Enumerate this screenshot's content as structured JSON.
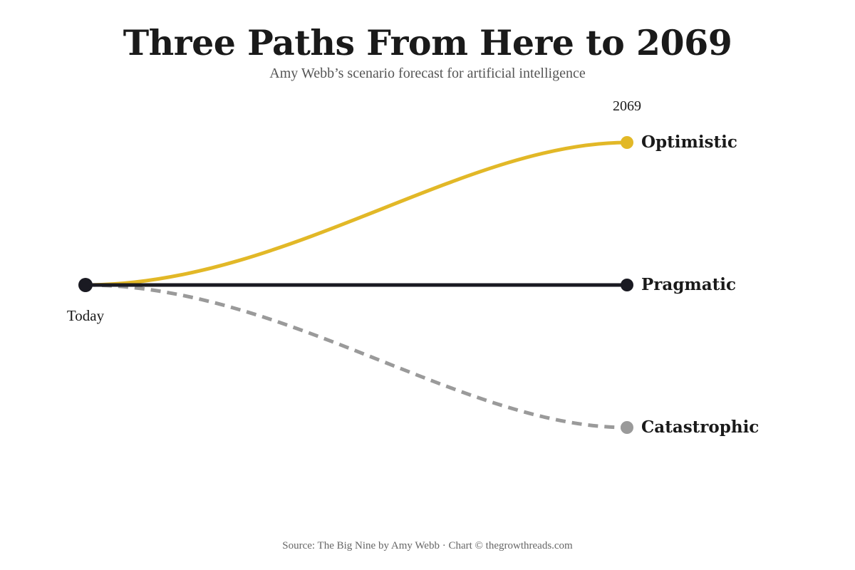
{
  "header": {
    "title": "Three Paths From Here to 2069",
    "subtitle": "Amy Webb’s scenario forecast for artificial intelligence"
  },
  "timeline": {
    "start_label": "Today",
    "end_label": "2069"
  },
  "scenarios": [
    {
      "id": "optimistic",
      "label": "Optimistic",
      "color": "#e2b827",
      "line_style": "solid"
    },
    {
      "id": "pragmatic",
      "label": "Pragmatic",
      "color": "#1a1a22",
      "line_style": "solid"
    },
    {
      "id": "catastrophic",
      "label": "Catastrophic",
      "color": "#9a9a9a",
      "line_style": "dashed"
    }
  ],
  "footer": {
    "source": "Source: The Big Nine by Amy Webb · Chart © thegrowthreads.com"
  }
}
